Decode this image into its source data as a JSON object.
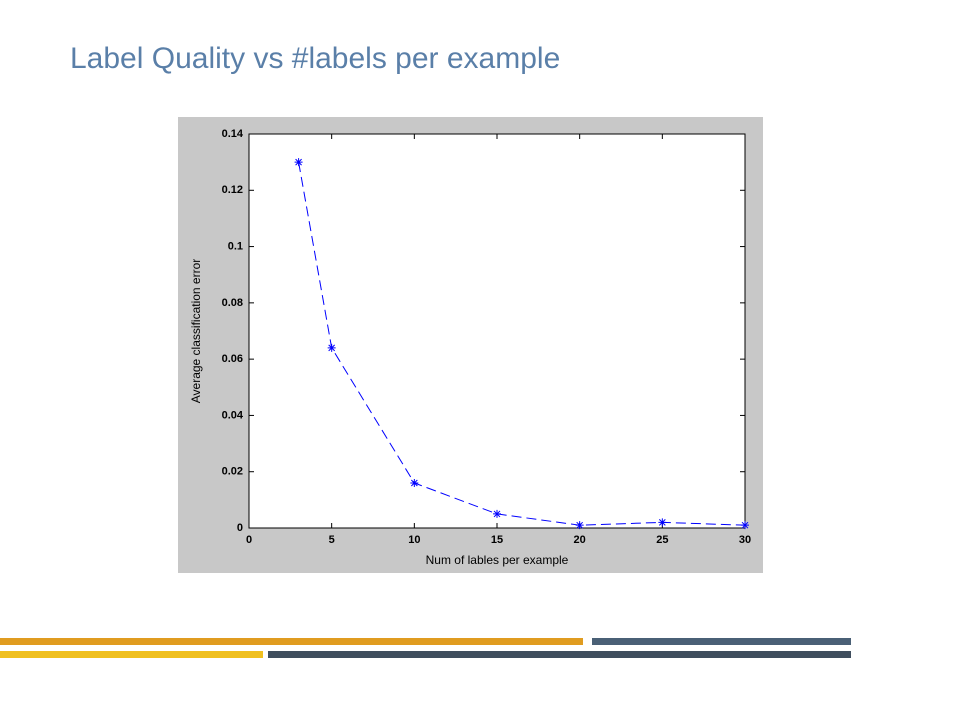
{
  "chart_data": {
    "type": "line",
    "title": "Label Quality vs #labels per example",
    "x_label": "Num of lables per example",
    "y_label": "Average classification error",
    "x": [
      3,
      5,
      10,
      15,
      20,
      25,
      30
    ],
    "values": [
      0.13,
      0.064,
      0.016,
      0.005,
      0.001,
      0.002,
      0.001
    ],
    "color": "#0000ff",
    "xlim": [
      0,
      30
    ],
    "xticks": [
      0,
      5,
      10,
      15,
      20,
      25,
      30
    ],
    "ylim": [
      0,
      0.14
    ],
    "yticks": [
      0,
      0.02,
      0.04,
      0.06,
      0.08,
      0.1,
      0.12,
      0.14
    ]
  }
}
